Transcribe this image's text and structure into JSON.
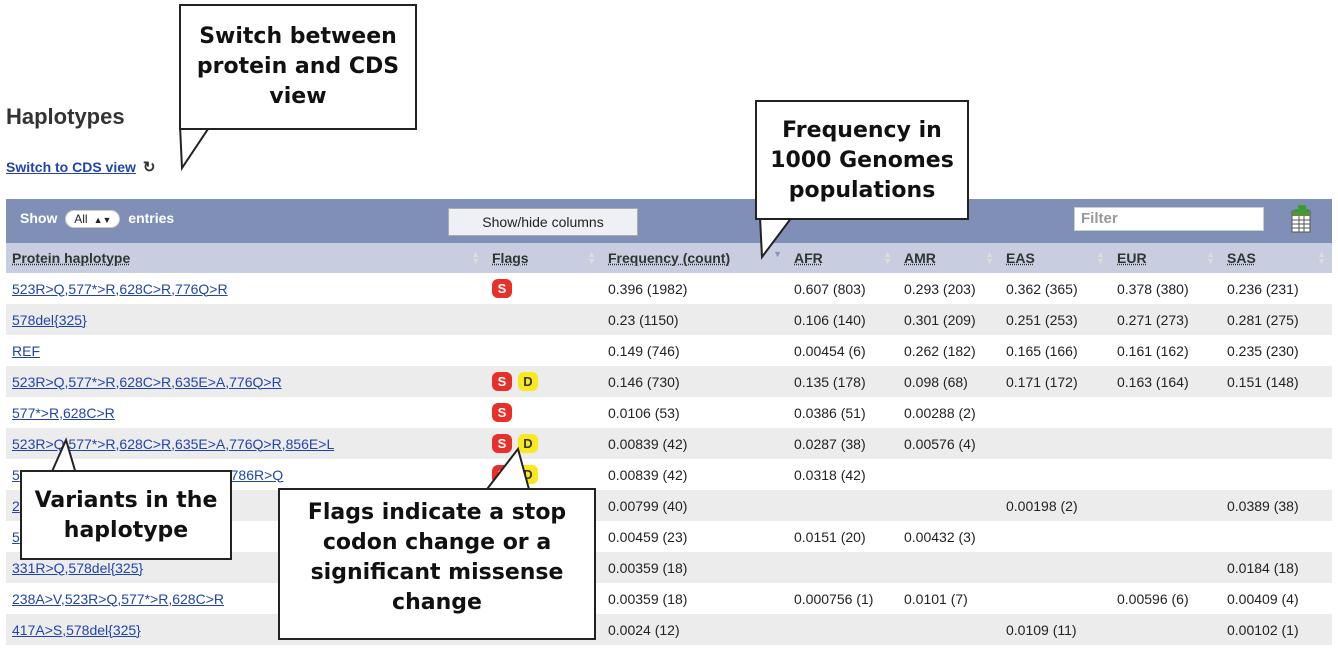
{
  "page": {
    "title": "Haplotypes",
    "switch_link": "Switch to CDS view",
    "refresh_icon": "refresh-icon"
  },
  "toolbar": {
    "show_label": "Show",
    "entries_value": "All",
    "entries_label": "entries",
    "showhide_label": "Show/hide columns",
    "filter_placeholder": "Filter",
    "export_icon": "excel-export-icon"
  },
  "table": {
    "headers": [
      "Protein haplotype",
      "Flags",
      "Frequency (count)",
      "AFR",
      "AMR",
      "EAS",
      "EUR",
      "SAS"
    ],
    "rows": [
      {
        "haplotype": "523R>Q,577*>R,628C>R,776Q>R",
        "flags": [
          "S"
        ],
        "freq": "0.396 (1982)",
        "afr": "0.607 (803)",
        "amr": "0.293 (203)",
        "eas": "0.362 (365)",
        "eur": "0.378 (380)",
        "sas": "0.236 (231)"
      },
      {
        "haplotype": "578del{325}",
        "flags": [],
        "freq": "0.23 (1150)",
        "afr": "0.106 (140)",
        "amr": "0.301 (209)",
        "eas": "0.251 (253)",
        "eur": "0.271 (273)",
        "sas": "0.281 (275)"
      },
      {
        "haplotype": "REF",
        "flags": [],
        "freq": "0.149 (746)",
        "afr": "0.00454 (6)",
        "amr": "0.262 (182)",
        "eas": "0.165 (166)",
        "eur": "0.161 (162)",
        "sas": "0.235 (230)"
      },
      {
        "haplotype": "523R>Q,577*>R,628C>R,635E>A,776Q>R",
        "flags": [
          "S",
          "D"
        ],
        "freq": "0.146 (730)",
        "afr": "0.135 (178)",
        "amr": "0.098 (68)",
        "eas": "0.171 (172)",
        "eur": "0.163 (164)",
        "sas": "0.151 (148)"
      },
      {
        "haplotype": "577*>R,628C>R",
        "flags": [
          "S"
        ],
        "freq": "0.0106 (53)",
        "afr": "0.0386 (51)",
        "amr": "0.00288 (2)",
        "eas": "",
        "eur": "",
        "sas": ""
      },
      {
        "haplotype": "523R>Q,577*>R,628C>R,635E>A,776Q>R,856E>L",
        "flags": [
          "S",
          "D"
        ],
        "freq": "0.00839 (42)",
        "afr": "0.0287 (38)",
        "amr": "0.00576 (4)",
        "eas": "",
        "eur": "",
        "sas": ""
      },
      {
        "haplotype": "5",
        "hidden_suffix": "6Q>R,786R>Q",
        "flags": [
          "S",
          "D"
        ],
        "freq": "0.00839 (42)",
        "afr": "0.0318 (42)",
        "amr": "",
        "eas": "",
        "eur": "",
        "sas": ""
      },
      {
        "haplotype": "2",
        "flags": [],
        "freq": "0.00799 (40)",
        "afr": "",
        "amr": "",
        "eas": "0.00198 (2)",
        "eur": "",
        "sas": "0.0389 (38)"
      },
      {
        "haplotype": "5",
        "flags": [],
        "freq": "0.00459 (23)",
        "afr": "0.0151 (20)",
        "amr": "0.00432 (3)",
        "eas": "",
        "eur": "",
        "sas": ""
      },
      {
        "haplotype": "331R>Q,578del{325}",
        "flags": [],
        "freq": "0.00359 (18)",
        "afr": "",
        "amr": "",
        "eas": "",
        "eur": "",
        "sas": "0.0184 (18)"
      },
      {
        "haplotype": "238A>V,523R>Q,577*>R,628C>R",
        "flags": [],
        "freq": "0.00359 (18)",
        "afr": "0.000756 (1)",
        "amr": "0.0101 (7)",
        "eas": "",
        "eur": "0.00596 (6)",
        "sas": "0.00409 (4)"
      },
      {
        "haplotype": "417A>S,578del{325}",
        "flags": [],
        "freq": "0.0024 (12)",
        "afr": "",
        "amr": "",
        "eas": "0.0109 (11)",
        "eur": "",
        "sas": "0.00102 (1)"
      }
    ]
  },
  "callouts": {
    "switch": "Switch between protein and CDS view",
    "frequency": "Frequency in 1000 Genomes populations",
    "variants": "Variants in the haplotype",
    "flags": "Flags indicate a stop codon change or a significant missense change"
  }
}
